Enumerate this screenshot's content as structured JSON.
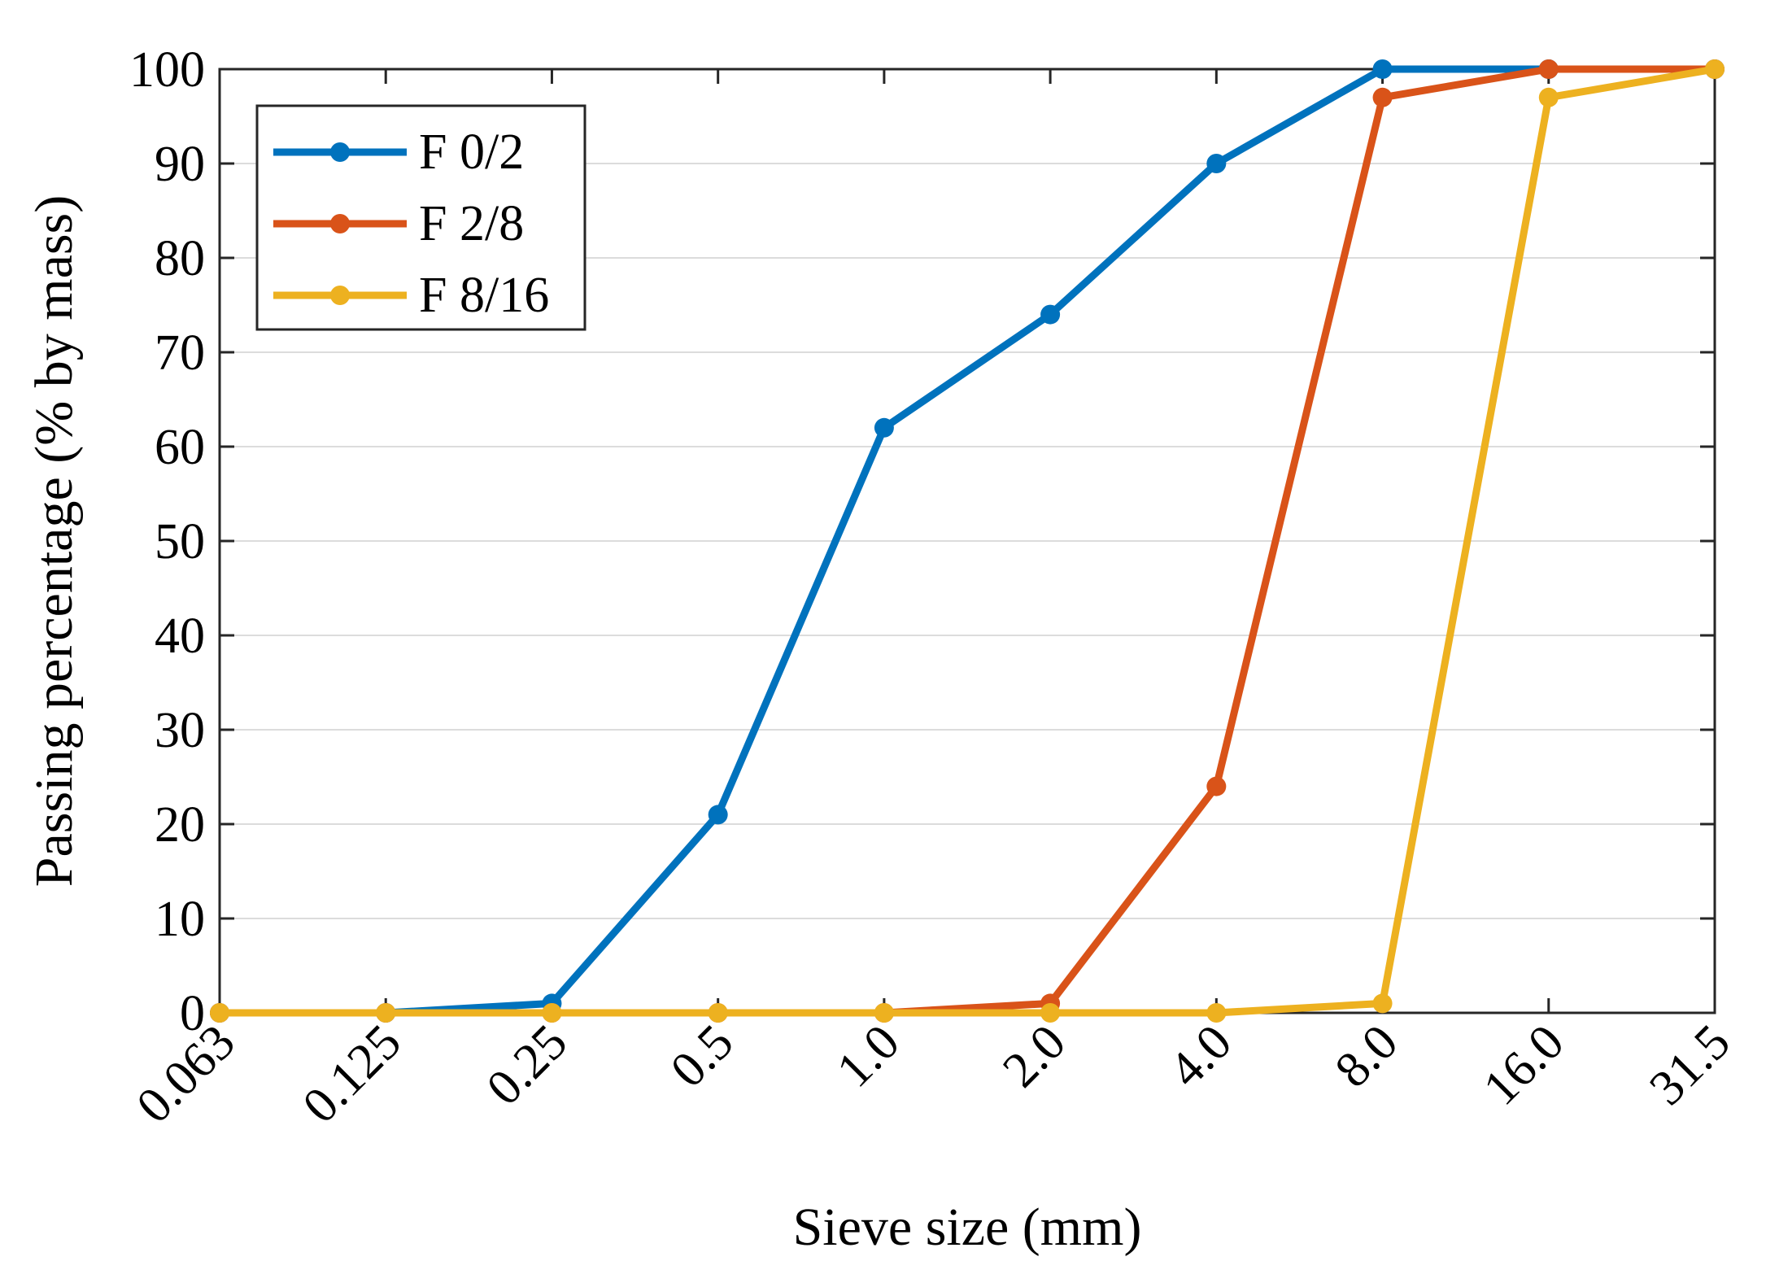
{
  "chart_data": {
    "type": "line",
    "title": "",
    "xlabel": "Sieve size (mm)",
    "ylabel": "Passing percentage (% by mass)",
    "categories": [
      "0.063",
      "0.125",
      "0.25",
      "0.5",
      "1.0",
      "2.0",
      "4.0",
      "8.0",
      "16.0",
      "31.5"
    ],
    "ylim": [
      0,
      100
    ],
    "yticks": [
      "0",
      "10",
      "20",
      "30",
      "40",
      "50",
      "60",
      "70",
      "80",
      "90",
      "100"
    ],
    "grid": "horizontal",
    "legend_position": "top-left",
    "series": [
      {
        "name": "F 0/2",
        "color": "#0072BD",
        "values": [
          0,
          0,
          1,
          21,
          62,
          74,
          90,
          100,
          100,
          100
        ]
      },
      {
        "name": "F 2/8",
        "color": "#D95319",
        "values": [
          0,
          0,
          0,
          0,
          0,
          1,
          24,
          97,
          100,
          100
        ]
      },
      {
        "name": "F 8/16",
        "color": "#EDB120",
        "values": [
          0,
          0,
          0,
          0,
          0,
          0,
          0,
          1,
          97,
          100
        ]
      }
    ]
  }
}
